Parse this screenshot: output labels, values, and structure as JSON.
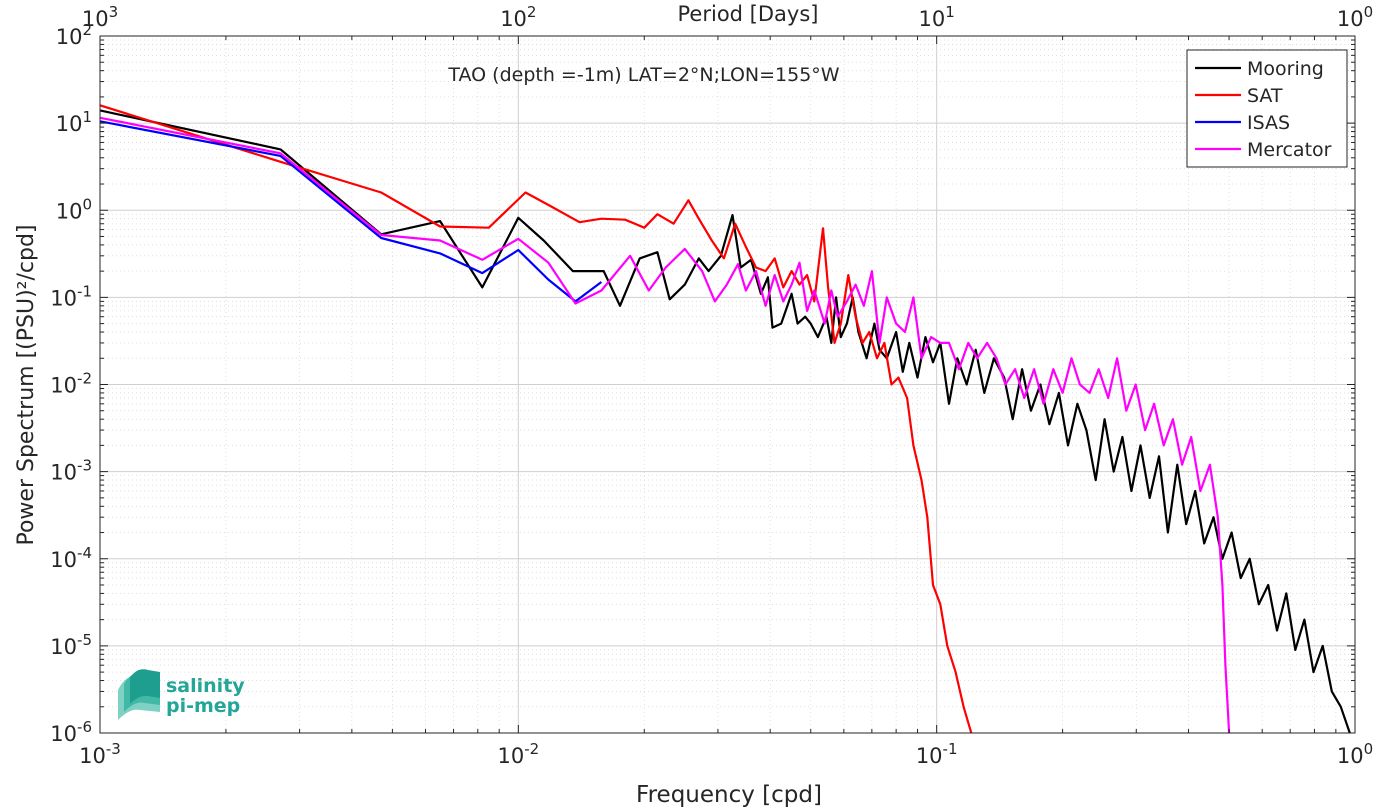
{
  "chart_data": {
    "type": "line",
    "title": "TAO (depth =-1m) LAT=2°N;LON=155°W",
    "xlabel": "Frequency [cpd]",
    "ylabel": "Power Spectrum [(PSU)²/cpd]",
    "top_xlabel": "Period [Days]",
    "x_scale": "log",
    "y_scale": "log",
    "xlim": [
      0.001,
      1
    ],
    "ylim": [
      1e-06,
      100
    ],
    "grid": true,
    "legend_position": "top-right",
    "x_ticks": [
      {
        "base": "10",
        "exp": "-3"
      },
      {
        "base": "10",
        "exp": "-2"
      },
      {
        "base": "10",
        "exp": "-1"
      },
      {
        "base": "10",
        "exp": "0"
      }
    ],
    "top_ticks": [
      {
        "base": "10",
        "exp": "3"
      },
      {
        "base": "10",
        "exp": "2"
      },
      {
        "base": "10",
        "exp": "1"
      },
      {
        "base": "10",
        "exp": "0"
      }
    ],
    "y_ticks": [
      {
        "base": "10",
        "exp": "-6"
      },
      {
        "base": "10",
        "exp": "-5"
      },
      {
        "base": "10",
        "exp": "-4"
      },
      {
        "base": "10",
        "exp": "-3"
      },
      {
        "base": "10",
        "exp": "-2"
      },
      {
        "base": "10",
        "exp": "-1"
      },
      {
        "base": "10",
        "exp": "0"
      },
      {
        "base": "10",
        "exp": "1"
      },
      {
        "base": "10",
        "exp": "2"
      }
    ],
    "series": [
      {
        "name": "Mooring",
        "color": "#000000",
        "points": [
          [
            0.001,
            14
          ],
          [
            0.0027,
            5.0
          ],
          [
            0.0047,
            0.53
          ],
          [
            0.0065,
            0.75
          ],
          [
            0.0082,
            0.13
          ],
          [
            0.01,
            0.82
          ],
          [
            0.0115,
            0.45
          ],
          [
            0.0135,
            0.2
          ],
          [
            0.016,
            0.2
          ],
          [
            0.0175,
            0.08
          ],
          [
            0.0195,
            0.28
          ],
          [
            0.0215,
            0.33
          ],
          [
            0.023,
            0.095
          ],
          [
            0.025,
            0.14
          ],
          [
            0.027,
            0.28
          ],
          [
            0.0285,
            0.2
          ],
          [
            0.0305,
            0.3
          ],
          [
            0.0325,
            0.88
          ],
          [
            0.034,
            0.22
          ],
          [
            0.036,
            0.27
          ],
          [
            0.038,
            0.11
          ],
          [
            0.0395,
            0.17
          ],
          [
            0.0405,
            0.045
          ],
          [
            0.0425,
            0.05
          ],
          [
            0.045,
            0.11
          ],
          [
            0.0465,
            0.05
          ],
          [
            0.0485,
            0.06
          ],
          [
            0.05,
            0.05
          ],
          [
            0.052,
            0.035
          ],
          [
            0.0545,
            0.06
          ],
          [
            0.056,
            0.03
          ],
          [
            0.0575,
            0.1
          ],
          [
            0.059,
            0.035
          ],
          [
            0.061,
            0.05
          ],
          [
            0.063,
            0.1
          ],
          [
            0.065,
            0.04
          ],
          [
            0.068,
            0.02
          ],
          [
            0.071,
            0.05
          ],
          [
            0.073,
            0.025
          ],
          [
            0.076,
            0.02
          ],
          [
            0.08,
            0.04
          ],
          [
            0.083,
            0.014
          ],
          [
            0.086,
            0.03
          ],
          [
            0.09,
            0.012
          ],
          [
            0.094,
            0.035
          ],
          [
            0.098,
            0.018
          ],
          [
            0.102,
            0.03
          ],
          [
            0.107,
            0.006
          ],
          [
            0.112,
            0.02
          ],
          [
            0.118,
            0.01
          ],
          [
            0.124,
            0.025
          ],
          [
            0.13,
            0.008
          ],
          [
            0.137,
            0.02
          ],
          [
            0.145,
            0.012
          ],
          [
            0.152,
            0.004
          ],
          [
            0.16,
            0.015
          ],
          [
            0.168,
            0.005
          ],
          [
            0.177,
            0.01
          ],
          [
            0.186,
            0.0035
          ],
          [
            0.196,
            0.008
          ],
          [
            0.206,
            0.002
          ],
          [
            0.217,
            0.006
          ],
          [
            0.228,
            0.003
          ],
          [
            0.24,
            0.0008
          ],
          [
            0.252,
            0.004
          ],
          [
            0.265,
            0.001
          ],
          [
            0.278,
            0.0025
          ],
          [
            0.292,
            0.0006
          ],
          [
            0.307,
            0.002
          ],
          [
            0.323,
            0.0005
          ],
          [
            0.34,
            0.0015
          ],
          [
            0.357,
            0.0002
          ],
          [
            0.376,
            0.0012
          ],
          [
            0.395,
            0.00025
          ],
          [
            0.415,
            0.0006
          ],
          [
            0.436,
            0.00015
          ],
          [
            0.459,
            0.0003
          ],
          [
            0.482,
            0.0001
          ],
          [
            0.507,
            0.0002
          ],
          [
            0.533,
            6e-05
          ],
          [
            0.56,
            0.0001
          ],
          [
            0.589,
            3e-05
          ],
          [
            0.62,
            5e-05
          ],
          [
            0.651,
            1.5e-05
          ],
          [
            0.685,
            4e-05
          ],
          [
            0.72,
            9e-06
          ],
          [
            0.757,
            2e-05
          ],
          [
            0.796,
            5e-06
          ],
          [
            0.837,
            1e-05
          ],
          [
            0.88,
            3e-06
          ],
          [
            0.925,
            2e-06
          ],
          [
            0.972,
            1e-06
          ]
        ]
      },
      {
        "name": "SAT",
        "color": "#ff0000",
        "points": [
          [
            0.001,
            16
          ],
          [
            0.0027,
            3.6
          ],
          [
            0.0047,
            1.6
          ],
          [
            0.0065,
            0.65
          ],
          [
            0.0085,
            0.63
          ],
          [
            0.0104,
            1.6
          ],
          [
            0.012,
            1.1
          ],
          [
            0.014,
            0.73
          ],
          [
            0.0158,
            0.8
          ],
          [
            0.018,
            0.78
          ],
          [
            0.02,
            0.63
          ],
          [
            0.0215,
            0.9
          ],
          [
            0.0235,
            0.7
          ],
          [
            0.0255,
            1.3
          ],
          [
            0.027,
            0.8
          ],
          [
            0.029,
            0.45
          ],
          [
            0.031,
            0.28
          ],
          [
            0.033,
            0.7
          ],
          [
            0.035,
            0.38
          ],
          [
            0.037,
            0.22
          ],
          [
            0.039,
            0.2
          ],
          [
            0.041,
            0.28
          ],
          [
            0.043,
            0.13
          ],
          [
            0.045,
            0.2
          ],
          [
            0.047,
            0.14
          ],
          [
            0.049,
            0.18
          ],
          [
            0.051,
            0.09
          ],
          [
            0.0535,
            0.62
          ],
          [
            0.055,
            0.13
          ],
          [
            0.057,
            0.03
          ],
          [
            0.059,
            0.05
          ],
          [
            0.0615,
            0.18
          ],
          [
            0.064,
            0.06
          ],
          [
            0.0665,
            0.03
          ],
          [
            0.069,
            0.04
          ],
          [
            0.072,
            0.02
          ],
          [
            0.075,
            0.03
          ],
          [
            0.078,
            0.01
          ],
          [
            0.081,
            0.012
          ],
          [
            0.085,
            0.007
          ],
          [
            0.088,
            0.002
          ],
          [
            0.092,
            0.0008
          ],
          [
            0.095,
            0.0003
          ],
          [
            0.098,
            5e-05
          ],
          [
            0.102,
            3e-05
          ],
          [
            0.106,
            1e-05
          ],
          [
            0.111,
            5e-06
          ],
          [
            0.116,
            2e-06
          ],
          [
            0.121,
            1e-06
          ]
        ]
      },
      {
        "name": "ISAS",
        "color": "#0000ff",
        "points": [
          [
            0.001,
            10.5
          ],
          [
            0.0027,
            4.2
          ],
          [
            0.0047,
            0.48
          ],
          [
            0.0065,
            0.32
          ],
          [
            0.0082,
            0.19
          ],
          [
            0.01,
            0.35
          ],
          [
            0.0118,
            0.16
          ],
          [
            0.0137,
            0.09
          ],
          [
            0.0158,
            0.15
          ]
        ]
      },
      {
        "name": "Mercator",
        "color": "#ff00ff",
        "points": [
          [
            0.001,
            11.5
          ],
          [
            0.0027,
            4.5
          ],
          [
            0.0047,
            0.52
          ],
          [
            0.0065,
            0.45
          ],
          [
            0.0082,
            0.27
          ],
          [
            0.01,
            0.47
          ],
          [
            0.0118,
            0.25
          ],
          [
            0.0137,
            0.085
          ],
          [
            0.0158,
            0.12
          ],
          [
            0.0185,
            0.3
          ],
          [
            0.0205,
            0.12
          ],
          [
            0.0225,
            0.22
          ],
          [
            0.025,
            0.36
          ],
          [
            0.0275,
            0.2
          ],
          [
            0.0295,
            0.09
          ],
          [
            0.0315,
            0.14
          ],
          [
            0.0335,
            0.24
          ],
          [
            0.035,
            0.12
          ],
          [
            0.037,
            0.2
          ],
          [
            0.039,
            0.08
          ],
          [
            0.041,
            0.18
          ],
          [
            0.043,
            0.09
          ],
          [
            0.045,
            0.14
          ],
          [
            0.047,
            0.25
          ],
          [
            0.049,
            0.07
          ],
          [
            0.051,
            0.12
          ],
          [
            0.054,
            0.05
          ],
          [
            0.056,
            0.12
          ],
          [
            0.058,
            0.06
          ],
          [
            0.061,
            0.09
          ],
          [
            0.064,
            0.14
          ],
          [
            0.067,
            0.08
          ],
          [
            0.07,
            0.2
          ],
          [
            0.073,
            0.03
          ],
          [
            0.076,
            0.1
          ],
          [
            0.08,
            0.05
          ],
          [
            0.084,
            0.04
          ],
          [
            0.088,
            0.1
          ],
          [
            0.092,
            0.02
          ],
          [
            0.097,
            0.035
          ],
          [
            0.102,
            0.03
          ],
          [
            0.107,
            0.03
          ],
          [
            0.113,
            0.015
          ],
          [
            0.119,
            0.03
          ],
          [
            0.125,
            0.02
          ],
          [
            0.132,
            0.03
          ],
          [
            0.139,
            0.02
          ],
          [
            0.146,
            0.01
          ],
          [
            0.154,
            0.015
          ],
          [
            0.162,
            0.007
          ],
          [
            0.171,
            0.015
          ],
          [
            0.18,
            0.006
          ],
          [
            0.19,
            0.015
          ],
          [
            0.2,
            0.008
          ],
          [
            0.21,
            0.02
          ],
          [
            0.22,
            0.01
          ],
          [
            0.232,
            0.008
          ],
          [
            0.244,
            0.015
          ],
          [
            0.257,
            0.007
          ],
          [
            0.27,
            0.02
          ],
          [
            0.284,
            0.005
          ],
          [
            0.299,
            0.01
          ],
          [
            0.315,
            0.003
          ],
          [
            0.331,
            0.006
          ],
          [
            0.349,
            0.002
          ],
          [
            0.367,
            0.004
          ],
          [
            0.386,
            0.0012
          ],
          [
            0.406,
            0.0025
          ],
          [
            0.427,
            0.0006
          ],
          [
            0.45,
            0.0012
          ],
          [
            0.47,
            0.0003
          ],
          [
            0.482,
            5e-05
          ],
          [
            0.49,
            6e-06
          ],
          [
            0.5,
            1e-06
          ]
        ]
      }
    ]
  },
  "logo": {
    "line1": "salinity",
    "line2": "pi-mep"
  }
}
